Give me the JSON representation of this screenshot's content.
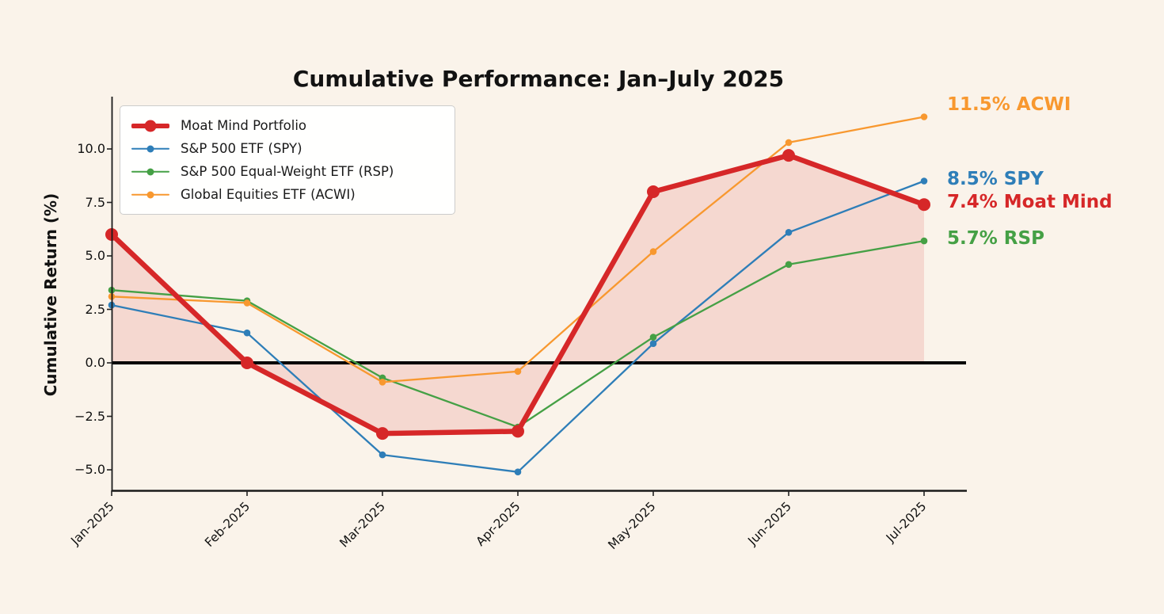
{
  "chart_data": {
    "type": "line",
    "title": "Cumulative Performance: Jan–July 2025",
    "xlabel": "",
    "ylabel": "Cumulative Return (%)",
    "x": [
      "Jan-2025",
      "Feb-2025",
      "Mar-2025",
      "Apr-2025",
      "May-2025",
      "Jun-2025",
      "Jul-2025"
    ],
    "yticks": [
      10.0,
      7.5,
      5.0,
      2.5,
      0.0,
      -2.5,
      -5.0
    ],
    "ytick_labels": [
      "10.0",
      "7.5",
      "5.0",
      "2.5",
      "0.0",
      "−2.5",
      "−5.0"
    ],
    "ylim": [
      -6.1,
      12.4
    ],
    "grid": false,
    "legend_position": "upper-left",
    "background_color": "#faf3ea",
    "zero_line": {
      "show": true,
      "color": "#000000",
      "width": 4
    },
    "fill": {
      "series": "moat",
      "color": "rgba(214,39,40,0.13)"
    },
    "series": [
      {
        "key": "moat",
        "name": "Moat Mind Portfolio",
        "color": "#d62728",
        "line_width": 6.5,
        "marker": "circle",
        "marker_radius": 8,
        "values": [
          6.0,
          0.0,
          -3.3,
          -3.2,
          8.0,
          9.7,
          7.4
        ]
      },
      {
        "key": "spy",
        "name": "S&P 500 ETF (SPY)",
        "color": "#2e7eb8",
        "line_width": 2.3,
        "marker": "circle",
        "marker_radius": 4.3,
        "values": [
          2.7,
          1.4,
          -4.3,
          -5.1,
          0.9,
          6.1,
          8.5
        ]
      },
      {
        "key": "rsp",
        "name": "S&P 500 Equal-Weight ETF (RSP)",
        "color": "#45a045",
        "line_width": 2.3,
        "marker": "circle",
        "marker_radius": 4.3,
        "values": [
          3.4,
          2.9,
          -0.7,
          -3.0,
          1.2,
          4.6,
          5.7
        ]
      },
      {
        "key": "acwi",
        "name": "Global Equities ETF (ACWI)",
        "color": "#f8982f",
        "line_width": 2.3,
        "marker": "circle",
        "marker_radius": 4.3,
        "values": [
          3.1,
          2.8,
          -0.9,
          -0.4,
          5.2,
          10.3,
          11.5
        ]
      }
    ],
    "end_labels": [
      {
        "text": "11.5% ACWI",
        "series": "acwi",
        "value": 11.5,
        "color": "#f8982f",
        "dy": -16
      },
      {
        "text": "8.5% SPY",
        "series": "spy",
        "value": 8.5,
        "color": "#2e7eb8",
        "dy": -3
      },
      {
        "text": "7.4% Moat Mind",
        "series": "moat",
        "value": 7.4,
        "color": "#d62728",
        "dy": -3
      },
      {
        "text": "5.7% RSP",
        "series": "rsp",
        "value": 5.7,
        "color": "#45a045",
        "dy": -3
      }
    ]
  }
}
